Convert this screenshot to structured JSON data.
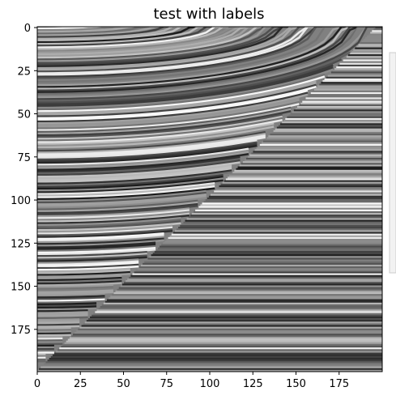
{
  "chart_data": {
    "type": "heatmap",
    "title": "test with labels",
    "xlabel": "",
    "ylabel": "",
    "colormap": "gray",
    "image_shape": [
      200,
      200
    ],
    "xlim": [
      0,
      199
    ],
    "ylim": [
      199,
      0
    ],
    "x_ticks": [
      "0",
      "25",
      "50",
      "75",
      "100",
      "125",
      "150",
      "175"
    ],
    "y_ticks": [
      "0",
      "25",
      "50",
      "75",
      "100",
      "125",
      "150",
      "175"
    ],
    "x_tick_values": [
      0,
      25,
      50,
      75,
      100,
      125,
      150,
      175
    ],
    "y_tick_values": [
      0,
      25,
      50,
      75,
      100,
      125,
      150,
      175
    ],
    "colorbar": true,
    "diagonal_boundary": {
      "x_at_top": 196,
      "x_at_bottom": 0,
      "description_text": ""
    }
  },
  "colors": {
    "mid_gray": "#808080",
    "axes_edge": "#000000",
    "colorbar_edge": "#cccccc",
    "colorbar_fill": "#f2f2f2"
  }
}
